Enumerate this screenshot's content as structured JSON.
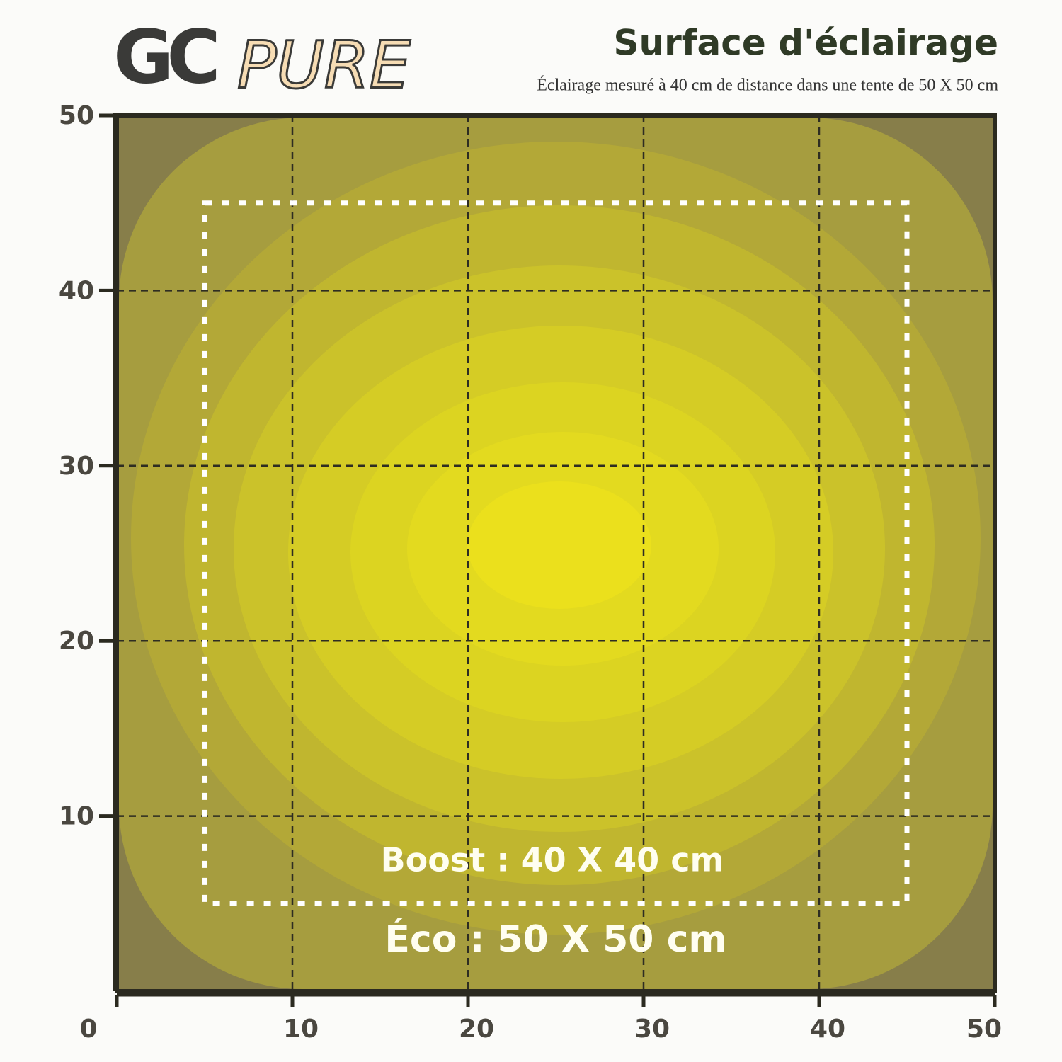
{
  "logo": {
    "mark": "GC",
    "text": "PURE"
  },
  "chart_data": {
    "type": "area_map",
    "title": "Surface d'éclairage",
    "subtitle": "Éclairage mesuré à 40 cm de distance dans une tente de 50 X 50 cm",
    "xlim": [
      0,
      50
    ],
    "ylim": [
      0,
      50
    ],
    "xticks": [
      0,
      10,
      20,
      30,
      40,
      50
    ],
    "yticks": [
      10,
      20,
      30,
      40,
      50
    ],
    "grid": true,
    "regions": [
      {
        "label": "Boost : 40 X 40 cm",
        "xlim": [
          5,
          45
        ],
        "ylim": [
          5,
          45
        ]
      }
    ],
    "annotations": [
      "Éco : 50 X 50 cm"
    ]
  }
}
